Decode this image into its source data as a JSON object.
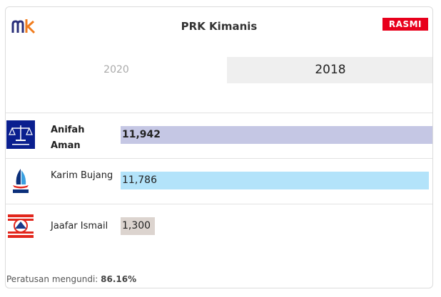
{
  "header": {
    "title": "PRK Kimanis",
    "badge": "RASMI",
    "brand_colors": {
      "m": "#2a2f7a",
      "k": "#f07c1e"
    }
  },
  "tabs": [
    {
      "label": "2020",
      "active": false
    },
    {
      "label": "2018",
      "active": true
    }
  ],
  "candidates": [
    {
      "name": "Anifah Aman",
      "votes": 11942,
      "votes_label": "11,942",
      "winner": true,
      "bar_color": "#c5c7e4",
      "party_icon": "barisan-nasional-logo-icon"
    },
    {
      "name": "Karim Bujang",
      "votes": 11786,
      "votes_label": "11,786",
      "winner": false,
      "bar_color": "#b3e3fa",
      "party_icon": "warisan-sabah-logo-icon"
    },
    {
      "name": "Jaafar Ismail",
      "votes": 1300,
      "votes_label": "1,300",
      "winner": false,
      "bar_color": "#dcd4cf",
      "party_icon": "harapan-rakyat-logo-icon"
    }
  ],
  "footer": {
    "label": "Peratusan mengundi:",
    "value": "86.16%"
  }
}
